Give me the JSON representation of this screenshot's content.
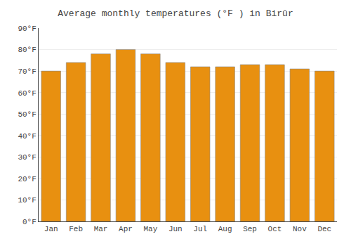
{
  "chart_data": {
    "type": "bar",
    "title": "Average monthly temperatures (°F ) in Birūr",
    "categories": [
      "Jan",
      "Feb",
      "Mar",
      "Apr",
      "May",
      "Jun",
      "Jul",
      "Aug",
      "Sep",
      "Oct",
      "Nov",
      "Dec"
    ],
    "values": [
      70,
      74,
      78,
      80,
      78,
      74,
      72,
      72,
      73,
      73,
      71,
      70
    ],
    "color": "#E89010",
    "ylim": [
      0,
      90
    ],
    "yticks": [
      {
        "value": 0,
        "label": "0°F"
      },
      {
        "value": 10,
        "label": "10°F"
      },
      {
        "value": 20,
        "label": "20°F"
      },
      {
        "value": 30,
        "label": "30°F"
      },
      {
        "value": 40,
        "label": "40°F"
      },
      {
        "value": 50,
        "label": "50°F"
      },
      {
        "value": 60,
        "label": "60°F"
      },
      {
        "value": 70,
        "label": "70°F"
      },
      {
        "value": 80,
        "label": "80°F"
      },
      {
        "value": 90,
        "label": "90°F"
      }
    ],
    "grid": true
  }
}
